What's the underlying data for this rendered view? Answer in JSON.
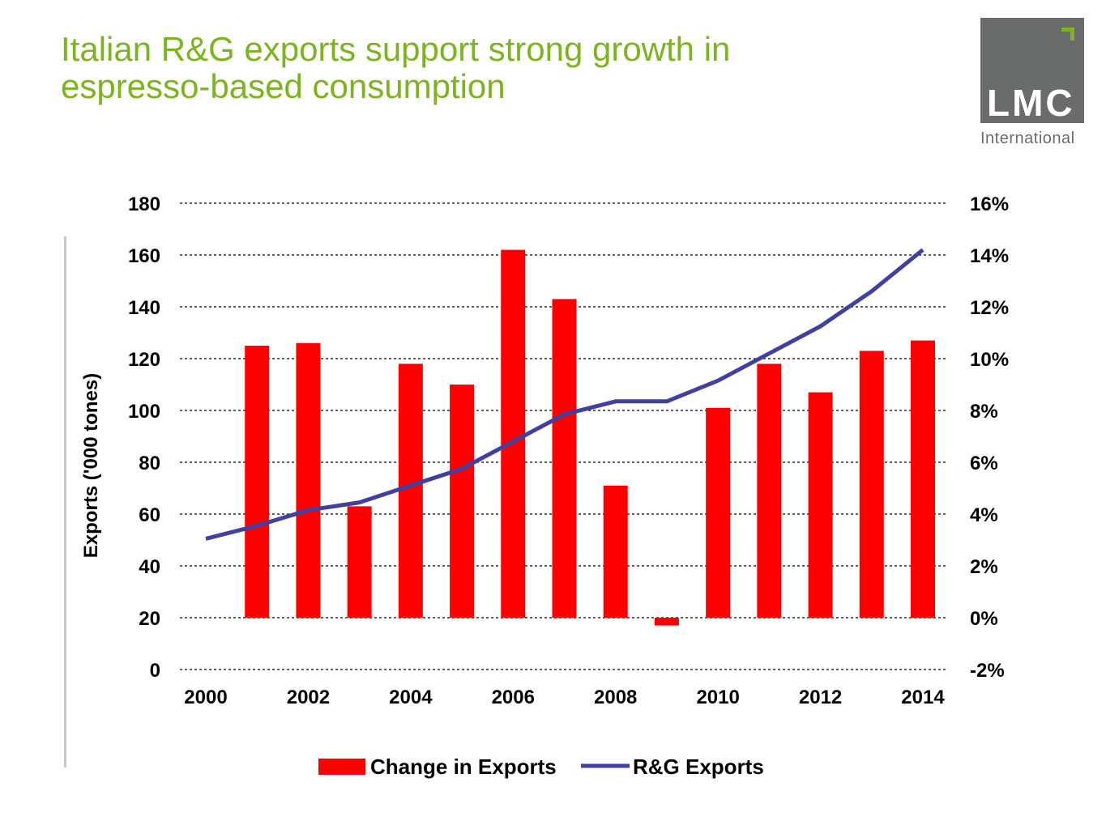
{
  "title": {
    "line1": "Italian R&G exports support strong growth in",
    "line2": "espresso-based consumption"
  },
  "logo": {
    "mark": "LMC",
    "subtitle": "International"
  },
  "colors": {
    "title": "#7ab51d",
    "bar": "#ff0000",
    "line": "#4040a0",
    "logo_box": "#6a6c6b"
  },
  "chart_data": {
    "type": "bar",
    "x": [
      2000,
      2001,
      2002,
      2003,
      2004,
      2005,
      2006,
      2007,
      2008,
      2009,
      2010,
      2011,
      2012,
      2013,
      2014
    ],
    "x_tick_labels": [
      "2000",
      "2002",
      "2004",
      "2006",
      "2008",
      "2010",
      "2012",
      "2014"
    ],
    "ylabel": "Exports ('000 tones)",
    "ylim": [
      0,
      180
    ],
    "y_ticks": [
      0,
      20,
      40,
      60,
      80,
      100,
      120,
      140,
      160,
      180
    ],
    "y2lim": [
      -2,
      16
    ],
    "y2_ticks": [
      "-2%",
      "0%",
      "2%",
      "4%",
      "6%",
      "8%",
      "10%",
      "12%",
      "14%",
      "16%"
    ],
    "grid": "horizontal dashed",
    "legend_position": "bottom",
    "series": [
      {
        "name": "Change in Exports",
        "type": "bar",
        "axis": "right",
        "unit": "%",
        "values": [
          null,
          10.5,
          10.6,
          4.3,
          9.8,
          9.0,
          14.2,
          12.3,
          5.1,
          -0.3,
          8.1,
          9.8,
          8.7,
          10.3,
          10.7
        ]
      },
      {
        "name": "R&G Exports",
        "type": "line",
        "axis": "left",
        "values": [
          50.5,
          55.5,
          61.5,
          64.5,
          71,
          77.5,
          88,
          98.5,
          103.5,
          103.5,
          111.5,
          122,
          132.5,
          146,
          162
        ]
      }
    ]
  }
}
